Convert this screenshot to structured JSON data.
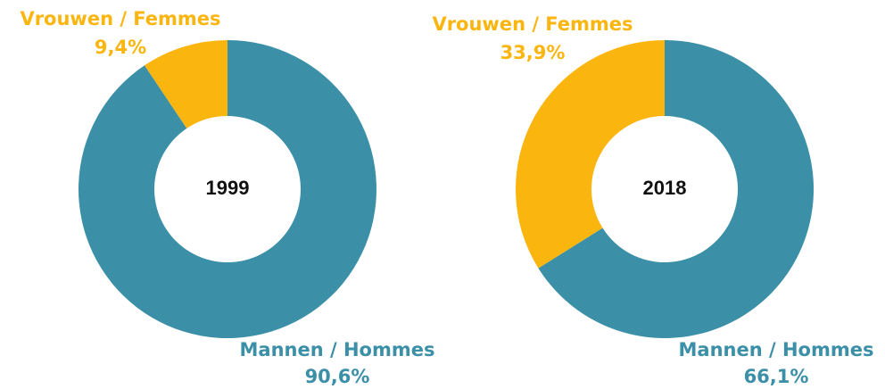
{
  "chart_data": [
    {
      "type": "pie",
      "title": "1999",
      "categories": [
        "Mannen / Hommes",
        "Vrouwen / Femmes"
      ],
      "values": [
        90.6,
        9.4
      ],
      "value_labels": [
        "90,6%",
        "9,4%"
      ],
      "colors": [
        "#3b8fa7",
        "#fbb50f"
      ]
    },
    {
      "type": "pie",
      "title": "2018",
      "categories": [
        "Mannen / Hommes",
        "Vrouwen / Femmes"
      ],
      "values": [
        66.1,
        33.9
      ],
      "value_labels": [
        "66,1%",
        "33,9%"
      ],
      "colors": [
        "#3b8fa7",
        "#fbb50f"
      ]
    }
  ]
}
